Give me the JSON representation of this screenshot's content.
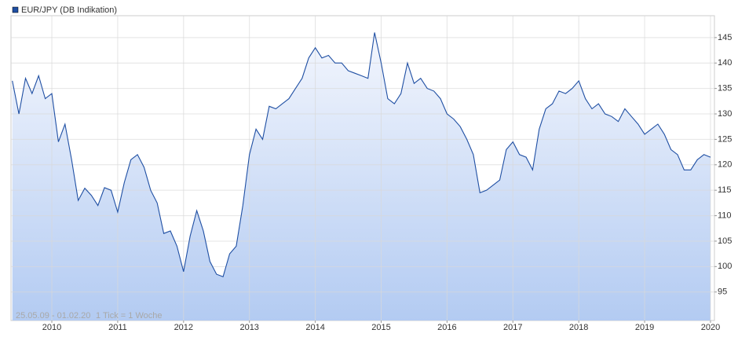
{
  "chart_data": {
    "type": "line",
    "note": [
      "25.05.09 - 01.02.20",
      "1 Tick = 1 Woche"
    ],
    "x": [
      2009.4,
      2009.5,
      2009.6,
      2009.7,
      2009.8,
      2009.9,
      2010.0,
      2010.1,
      2010.2,
      2010.3,
      2010.4,
      2010.5,
      2010.6,
      2010.7,
      2010.8,
      2010.9,
      2011.0,
      2011.1,
      2011.2,
      2011.3,
      2011.4,
      2011.5,
      2011.6,
      2011.7,
      2011.8,
      2011.9,
      2012.0,
      2012.1,
      2012.2,
      2012.3,
      2012.4,
      2012.5,
      2012.6,
      2012.7,
      2012.8,
      2012.9,
      2013.0,
      2013.1,
      2013.2,
      2013.3,
      2013.4,
      2013.5,
      2013.6,
      2013.7,
      2013.8,
      2013.9,
      2014.0,
      2014.1,
      2014.2,
      2014.3,
      2014.4,
      2014.5,
      2014.6,
      2014.7,
      2014.8,
      2014.9,
      2015.0,
      2015.1,
      2015.2,
      2015.3,
      2015.4,
      2015.5,
      2015.6,
      2015.7,
      2015.8,
      2015.9,
      2016.0,
      2016.1,
      2016.2,
      2016.3,
      2016.4,
      2016.5,
      2016.6,
      2016.7,
      2016.8,
      2016.9,
      2017.0,
      2017.1,
      2017.2,
      2017.3,
      2017.4,
      2017.5,
      2017.6,
      2017.7,
      2017.8,
      2017.9,
      2018.0,
      2018.1,
      2018.2,
      2018.3,
      2018.4,
      2018.5,
      2018.6,
      2018.7,
      2018.8,
      2018.9,
      2019.0,
      2019.1,
      2019.2,
      2019.3,
      2019.4,
      2019.5,
      2019.6,
      2019.7,
      2019.8,
      2019.9,
      2020.0
    ],
    "series": [
      {
        "name": "EUR/JPY (DB Indikation)",
        "color": "#1f4fa3",
        "values": [
          136.5,
          130,
          137,
          134,
          137.5,
          133,
          134,
          124.5,
          128,
          121,
          113,
          115.4,
          114,
          112,
          115.5,
          115,
          110.7,
          116.5,
          121,
          122,
          119.5,
          115,
          112.5,
          106.5,
          107,
          104,
          99,
          106,
          111,
          107,
          101,
          98.5,
          98,
          102.5,
          104,
          112,
          122,
          127,
          125,
          131.5,
          131,
          132,
          133,
          135,
          137,
          141,
          143,
          141,
          141.5,
          140,
          140,
          138.5,
          138,
          137.5,
          137,
          146,
          140,
          133,
          132,
          134,
          140,
          136,
          137,
          135,
          134.5,
          133,
          130,
          129,
          127.5,
          125,
          122,
          114.5,
          115,
          116,
          117,
          123,
          124.5,
          122,
          121.5,
          119,
          127,
          131,
          132,
          134.5,
          134,
          135,
          136.5,
          133,
          131,
          132,
          130,
          129.5,
          128.5,
          131,
          129.5,
          128,
          126,
          127,
          128,
          126,
          123,
          122,
          119,
          119,
          121,
          122,
          121.5
        ]
      }
    ],
    "xlim": [
      2009.38,
      2020.06
    ],
    "ylim": [
      89.4,
      149.3
    ],
    "xticks": [
      2010,
      2011,
      2012,
      2013,
      2014,
      2015,
      2016,
      2017,
      2018,
      2019,
      2020
    ],
    "yticks": [
      95,
      100,
      105,
      110,
      115,
      120,
      125,
      130,
      135,
      140,
      145
    ],
    "grid": true
  }
}
